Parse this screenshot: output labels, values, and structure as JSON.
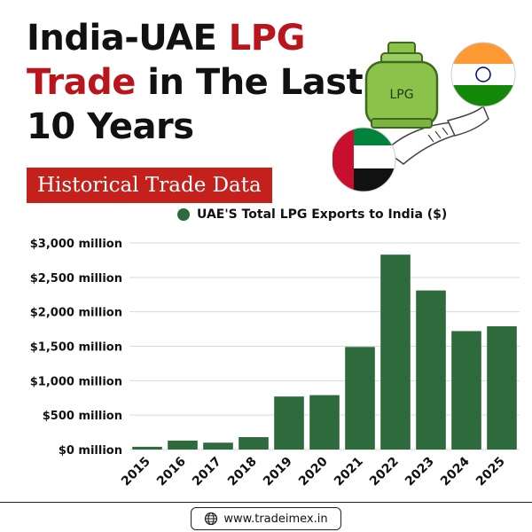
{
  "header": {
    "title_black_1": "India-UAE ",
    "title_red_1": "LPG",
    "title_red_2": "Trade",
    "title_black_2": " in The Last",
    "title_black_3": "10 Years",
    "badge": "Historical Trade Data",
    "illustration_label": "LPG"
  },
  "colors": {
    "bar": "#2e6b3c",
    "title_red": "#b8161c",
    "badge": "#c4211c"
  },
  "chart_data": {
    "type": "bar",
    "title": "",
    "xlabel": "",
    "ylabel": "",
    "categories": [
      "2015",
      "2016",
      "2017",
      "2018",
      "2019",
      "2020",
      "2021",
      "2022",
      "2023",
      "2024",
      "2025"
    ],
    "series": [
      {
        "name": "UAE'S Total LPG Exports to India ($)",
        "values": [
          40,
          130,
          100,
          180,
          770,
          790,
          1490,
          2830,
          2310,
          1720,
          1790
        ]
      }
    ],
    "ylim": [
      0,
      3000
    ],
    "yticks": [
      0,
      500,
      1000,
      1500,
      2000,
      2500,
      3000
    ],
    "ytick_labels": [
      "$0 million",
      "$500 million",
      "$1,000 million",
      "$1,500 million",
      "$2,000 million",
      "$2,500 million",
      "$3,000 million"
    ],
    "grid": true,
    "legend_position": "top"
  },
  "footer": {
    "website": "www.tradeimex.in",
    "icon": "globe-icon"
  }
}
